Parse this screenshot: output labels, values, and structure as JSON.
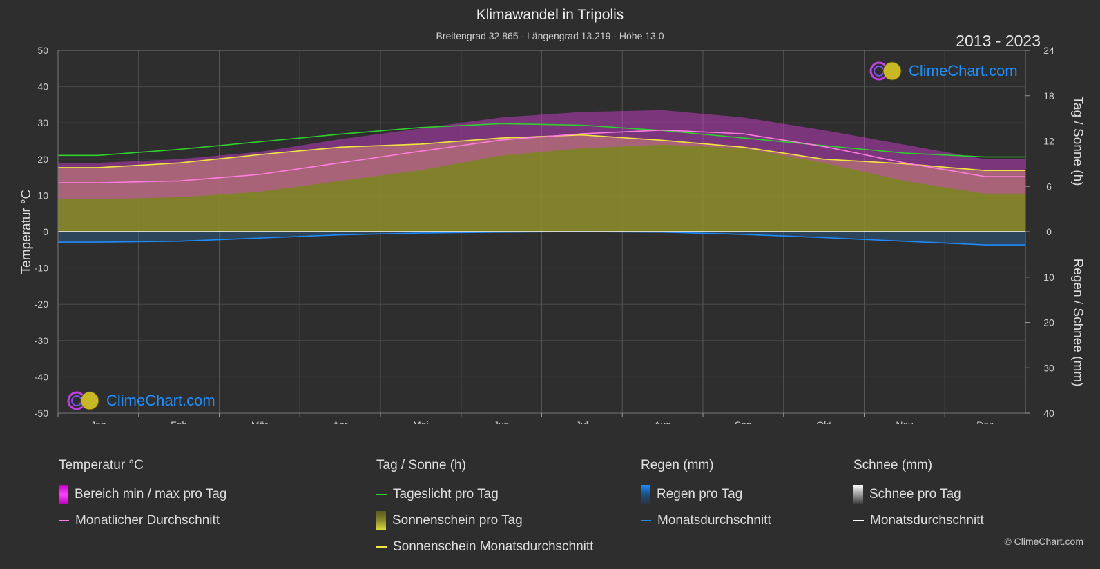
{
  "header": {
    "title": "Klimawandel in Tripolis",
    "subtitle": "Breitengrad 32.865 - Längengrad 13.219 - Höhe 13.0",
    "year_range": "2013 - 2023"
  },
  "logo": {
    "text": "ClimeChart.com"
  },
  "copyright": "© ClimeChart.com",
  "colors": {
    "background": "#2e2e2e",
    "temp_range": "#d93fd9",
    "temp_avg": "#ff7de0",
    "daylight": "#2ed12e",
    "sunshine_fill": "#8f8f2a",
    "sunshine_avg": "#f0e640",
    "rain_fill": "#2a6fb0",
    "rain_avg": "#1e8cff",
    "snow_avg": "#ffffff",
    "logo_blue": "#1e90ff"
  },
  "chart_data": {
    "type": "area",
    "categories": [
      "Jan",
      "Feb",
      "Mär",
      "Apr",
      "Mai",
      "Jun",
      "Jul",
      "Aug",
      "Sep",
      "Okt",
      "Nov",
      "Dez"
    ],
    "left_axis": {
      "label": "Temperatur °C",
      "ylim": [
        -50,
        50
      ],
      "ticks": [
        "50",
        "40",
        "30",
        "20",
        "10",
        "0",
        "-10",
        "-20",
        "-30",
        "-40",
        "-50"
      ]
    },
    "right_axis_top": {
      "label": "Tag / Sonne (h)",
      "ylim": [
        0,
        24
      ],
      "ticks": [
        "24",
        "18",
        "12",
        "6",
        "0"
      ]
    },
    "right_axis_bottom": {
      "label": "Regen / Schnee (mm)",
      "ylim": [
        0,
        40
      ],
      "ticks": [
        "0",
        "10",
        "20",
        "30",
        "40"
      ]
    },
    "grid": true,
    "series": [
      {
        "name": "Monatlicher Durchschnitt",
        "unit": "°C",
        "values": [
          13.5,
          14.0,
          15.8,
          19.0,
          22.2,
          25.3,
          27.0,
          28.0,
          27.0,
          23.5,
          19.0,
          15.2
        ]
      },
      {
        "name": "Bereich min / max pro Tag",
        "unit": "°C",
        "min": [
          9,
          9.5,
          11,
          14,
          17,
          21,
          23,
          24,
          23,
          19,
          14,
          10.5
        ],
        "max": [
          19,
          20,
          22,
          25.5,
          28.5,
          31.5,
          33,
          33.5,
          31.5,
          28,
          24,
          20
        ]
      },
      {
        "name": "Tageslicht pro Tag",
        "unit": "h",
        "values": [
          10.1,
          10.9,
          11.9,
          12.9,
          13.8,
          14.3,
          14.1,
          13.4,
          12.4,
          11.4,
          10.4,
          9.9
        ]
      },
      {
        "name": "Sonnenschein Monatsdurchschnitt",
        "unit": "h",
        "values": [
          8.5,
          9.1,
          10.2,
          11.2,
          11.6,
          12.4,
          12.8,
          12.1,
          11.2,
          9.6,
          9.0,
          8.1
        ]
      },
      {
        "name": "Regen Monatsdurchschnitt",
        "unit": "mm",
        "values": [
          2.3,
          2.1,
          1.4,
          0.7,
          0.3,
          0.1,
          0.0,
          0.1,
          0.6,
          1.3,
          2.1,
          2.9
        ]
      },
      {
        "name": "Schnee Monatsdurchschnitt",
        "unit": "mm",
        "values": [
          0,
          0,
          0,
          0,
          0,
          0,
          0,
          0,
          0,
          0,
          0,
          0
        ]
      }
    ]
  },
  "legend": {
    "temperature": {
      "title": "Temperatur °C",
      "range": "Bereich min / max pro Tag",
      "avg": "Monatlicher Durchschnitt"
    },
    "sun": {
      "title": "Tag / Sonne (h)",
      "daylight": "Tageslicht pro Tag",
      "sunshine": "Sonnenschein pro Tag",
      "sunshine_avg": "Sonnenschein Monatsdurchschnitt"
    },
    "rain": {
      "title": "Regen (mm)",
      "per_day": "Regen pro Tag",
      "avg": "Monatsdurchschnitt"
    },
    "snow": {
      "title": "Schnee (mm)",
      "per_day": "Schnee pro Tag",
      "avg": "Monatsdurchschnitt"
    }
  }
}
